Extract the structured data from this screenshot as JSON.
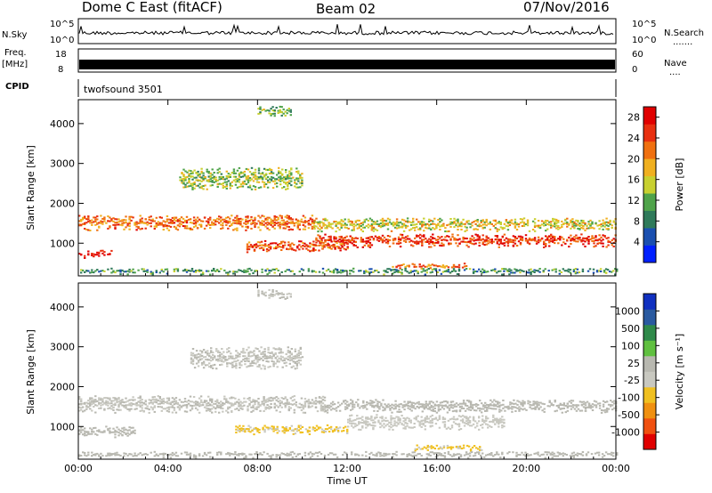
{
  "header": {
    "title": "Dome C East (fitACF)",
    "beam": "Beam 02",
    "date": "07/Nov/2016"
  },
  "strip_panels": {
    "nsky_label": "N.Sky",
    "nsky_ticks": [
      "10^5",
      "10^0"
    ],
    "nsearch_label": "N.Search",
    "nsearch_ticks": [
      "10^5",
      "10^0"
    ],
    "freq_label": "Freq.",
    "freq_unit": "[MHz]",
    "freq_ticks": [
      "18",
      "8"
    ],
    "nave_label": "Nave",
    "nave_ticks": [
      "60",
      "0"
    ],
    "cpid_label": "CPID",
    "cpid_value": "twofsound 3501"
  },
  "colors": {
    "power_scale": [
      "#0020ff",
      "#1a4fb0",
      "#2f7a5a",
      "#4fa34a",
      "#c8d030",
      "#f0b020",
      "#f07010",
      "#e83010",
      "#e00000"
    ],
    "velocity_scale": [
      "#e00000",
      "#f05010",
      "#f09010",
      "#f0c020",
      "#c8c8c0",
      "#b8b8b0",
      "#60c040",
      "#2f8a4a",
      "#2a5aa0",
      "#1030c0"
    ]
  },
  "chart_data": [
    {
      "type": "heatmap",
      "panel": "power",
      "ylabel": "Slant Range [km]",
      "xlabel": "",
      "x_ticks": [
        "00:00",
        "04:00",
        "08:00",
        "12:00",
        "16:00",
        "20:00",
        "00:00"
      ],
      "y_ticks": [
        "1000",
        "2000",
        "3000",
        "4000"
      ],
      "xlim_hours": [
        0,
        24
      ],
      "ylim_km": [
        180,
        4600
      ],
      "colorbar": {
        "label": "Power [dB]",
        "ticks": [
          "4",
          "8",
          "12",
          "16",
          "20",
          "24",
          "28"
        ],
        "range": [
          0,
          30
        ]
      },
      "bands": [
        {
          "t0": 0.0,
          "t1": 10.5,
          "r_center": 1500,
          "r_width": 350,
          "value": 22
        },
        {
          "t0": 10.5,
          "t1": 24.0,
          "r_center": 1450,
          "r_width": 300,
          "value": 16
        },
        {
          "t0": 10.5,
          "t1": 24.0,
          "r_center": 1050,
          "r_width": 300,
          "value": 25
        },
        {
          "t0": 0.0,
          "t1": 1.5,
          "r_center": 700,
          "r_width": 150,
          "value": 27
        },
        {
          "t0": 7.5,
          "t1": 12.0,
          "r_center": 900,
          "r_width": 250,
          "value": 23
        },
        {
          "t0": 4.5,
          "t1": 10.0,
          "r_center": 2600,
          "r_width": 500,
          "value": 14
        },
        {
          "t0": 8.0,
          "t1": 9.5,
          "r_center": 4300,
          "r_width": 200,
          "value": 12
        },
        {
          "t0": 14.0,
          "t1": 17.5,
          "r_center": 400,
          "r_width": 100,
          "value": 22
        },
        {
          "t0": 0.0,
          "t1": 24.0,
          "r_center": 280,
          "r_width": 120,
          "value": 10
        }
      ]
    },
    {
      "type": "heatmap",
      "panel": "velocity",
      "ylabel": "Slant Range [km]",
      "xlabel": "Time UT",
      "x_ticks": [
        "00:00",
        "04:00",
        "08:00",
        "12:00",
        "16:00",
        "20:00",
        "00:00"
      ],
      "y_ticks": [
        "1000",
        "2000",
        "3000",
        "4000"
      ],
      "xlim_hours": [
        0,
        24
      ],
      "ylim_km": [
        180,
        4600
      ],
      "colorbar": {
        "label": "Velocity [m s⁻¹]",
        "ticks": [
          "1000",
          "500",
          "100",
          "25",
          "-25",
          "-100",
          "-500",
          "-1000"
        ],
        "range": [
          -1200,
          1200
        ]
      },
      "bands": [
        {
          "t0": 0.0,
          "t1": 11.0,
          "r_center": 1550,
          "r_width": 400,
          "value": 0
        },
        {
          "t0": 11.0,
          "t1": 24.0,
          "r_center": 1500,
          "r_width": 300,
          "value": 50
        },
        {
          "t0": 12.0,
          "t1": 19.0,
          "r_center": 1100,
          "r_width": 350,
          "value": -100
        },
        {
          "t0": 0.0,
          "t1": 2.5,
          "r_center": 850,
          "r_width": 250,
          "value": 150
        },
        {
          "t0": 7.0,
          "t1": 12.0,
          "r_center": 900,
          "r_width": 200,
          "value": -300
        },
        {
          "t0": 5.0,
          "t1": 10.0,
          "r_center": 2700,
          "r_width": 500,
          "value": 0
        },
        {
          "t0": 8.0,
          "t1": 9.5,
          "r_center": 4300,
          "r_width": 200,
          "value": 0
        },
        {
          "t0": 15.0,
          "t1": 18.0,
          "r_center": 450,
          "r_width": 120,
          "value": -300
        },
        {
          "t0": 0.0,
          "t1": 24.0,
          "r_center": 280,
          "r_width": 120,
          "value": 80
        }
      ]
    }
  ]
}
